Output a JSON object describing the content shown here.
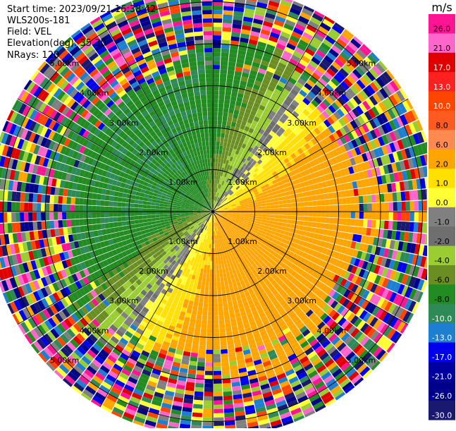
{
  "header": {
    "start_time": "Start time: 2023/09/21 16:38:42",
    "instrument": "WLS200s-181",
    "field": "Field: VEL",
    "elevation": "Elevation(deg): 35.30",
    "nrays": "NRays: 120"
  },
  "chart_data": {
    "type": "ppi",
    "field": "VEL",
    "units": "m/s",
    "n_rays": 120,
    "elevation_deg": 35.3,
    "range_rings_km": [
      1,
      2,
      3,
      4,
      5
    ],
    "range_ring_labels": [
      "1.00km",
      "2.00km",
      "3.00km",
      "4.00km",
      "5.00km"
    ],
    "colorbar": {
      "label": "m/s",
      "ticks": [
        "26.0",
        "21.0",
        "17.0",
        "13.0",
        "10.0",
        "8.0",
        "6.0",
        "2.0",
        "1.0",
        "0.0",
        "-1.0",
        "-2.0",
        "-4.0",
        "-6.0",
        "-8.0",
        "-10.0",
        "-13.0",
        "-17.0",
        "-21.0",
        "-26.0",
        "-30.0"
      ],
      "colors": [
        "#ff1493",
        "#ff66cc",
        "#e00000",
        "#ff2020",
        "#ff4500",
        "#ff5a20",
        "#ff8a50",
        "#ffa500",
        "#ffe000",
        "#ffff33",
        "#808080",
        "#6f6f6f",
        "#9acd32",
        "#6b8e23",
        "#228b22",
        "#2e8b57",
        "#1e7fd0",
        "#0000ee",
        "#0000a0",
        "#00008b",
        "#191970"
      ]
    },
    "pattern": {
      "receding_band": "orange/yellow, toward east and south",
      "approaching_band": "green, toward west and north",
      "outer_ranges": "noisy multi-colour returns"
    }
  }
}
